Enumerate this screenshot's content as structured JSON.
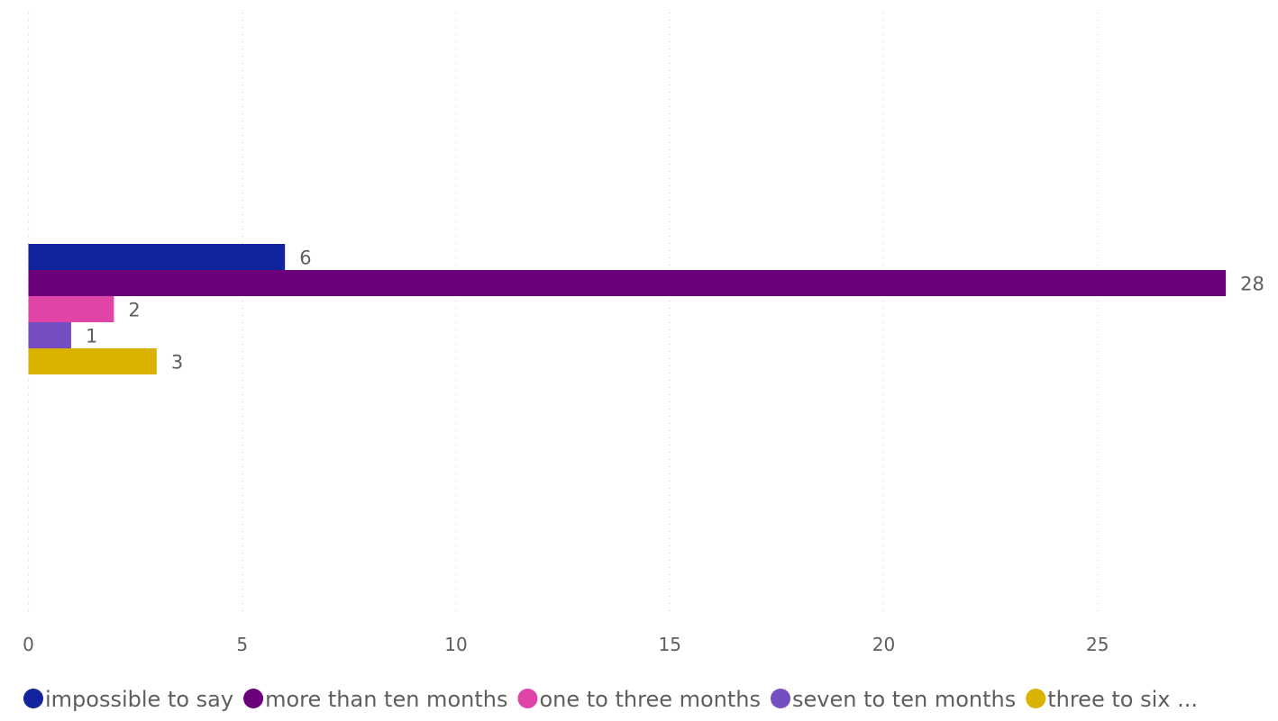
{
  "chart_data": {
    "type": "bar",
    "orientation": "horizontal",
    "categories": [
      ""
    ],
    "series": [
      {
        "name": "impossible to say",
        "values": [
          6
        ],
        "color": "#12239E"
      },
      {
        "name": "more than ten months",
        "values": [
          28
        ],
        "color": "#6B007B"
      },
      {
        "name": "one to three months",
        "values": [
          2
        ],
        "color": "#E044A7"
      },
      {
        "name": "seven to ten months",
        "values": [
          1
        ],
        "color": "#744EC2"
      },
      {
        "name": "three to six ...",
        "values": [
          3
        ],
        "color": "#D9B300"
      }
    ],
    "x_ticks": [
      "0",
      "5",
      "10",
      "15",
      "20",
      "25"
    ],
    "xlim": [
      0,
      28
    ],
    "title": "",
    "xlabel": "",
    "ylabel": "",
    "grid": true,
    "legend_position": "bottom-left",
    "data_labels": true
  }
}
